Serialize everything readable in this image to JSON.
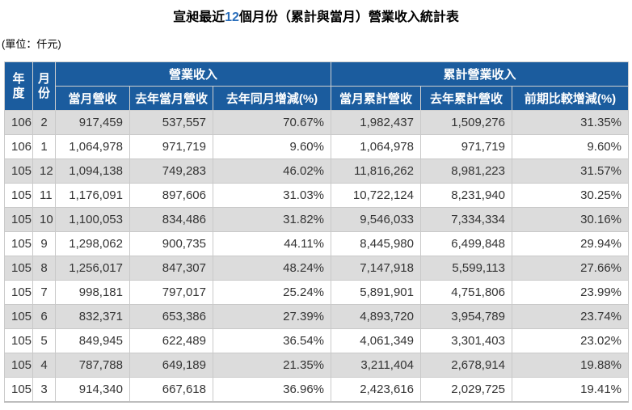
{
  "title": {
    "prefix": "宣昶最近",
    "number": "12",
    "suffix": "個月份（累計與當月）營業收入統計表"
  },
  "unit_label": "(單位：仟元)",
  "colors": {
    "header_bg": "#1b5c9e",
    "header_text": "#ffffff",
    "row_alt_bg": "#dcdcdc",
    "row_bg": "#ffffff",
    "border": "#c9c9c9",
    "text": "#333333",
    "title_color": "#000000",
    "title_number_color": "#2a6ebb"
  },
  "table": {
    "header": {
      "year": "年\n度",
      "month": "月\n份",
      "rev_group": "營業收入",
      "cum_group": "累計營業收入",
      "sub": [
        "當月營收",
        "去年當月營收",
        "去年同月增減(%)",
        "當月累計營收",
        "去年累計營收",
        "前期比較增減(%)"
      ]
    },
    "rows": [
      [
        "106",
        "2",
        "917,459",
        "537,557",
        "70.67%",
        "1,982,437",
        "1,509,276",
        "31.35%"
      ],
      [
        "106",
        "1",
        "1,064,978",
        "971,719",
        "9.60%",
        "1,064,978",
        "971,719",
        "9.60%"
      ],
      [
        "105",
        "12",
        "1,094,138",
        "749,283",
        "46.02%",
        "11,816,262",
        "8,981,223",
        "31.57%"
      ],
      [
        "105",
        "11",
        "1,176,091",
        "897,606",
        "31.03%",
        "10,722,124",
        "8,231,940",
        "30.25%"
      ],
      [
        "105",
        "10",
        "1,100,053",
        "834,486",
        "31.82%",
        "9,546,033",
        "7,334,334",
        "30.16%"
      ],
      [
        "105",
        "9",
        "1,298,062",
        "900,735",
        "44.11%",
        "8,445,980",
        "6,499,848",
        "29.94%"
      ],
      [
        "105",
        "8",
        "1,256,017",
        "847,307",
        "48.24%",
        "7,147,918",
        "5,599,113",
        "27.66%"
      ],
      [
        "105",
        "7",
        "998,181",
        "797,017",
        "25.24%",
        "5,891,901",
        "4,751,806",
        "23.99%"
      ],
      [
        "105",
        "6",
        "832,371",
        "653,386",
        "27.39%",
        "4,893,720",
        "3,954,789",
        "23.74%"
      ],
      [
        "105",
        "5",
        "849,945",
        "622,489",
        "36.54%",
        "4,061,349",
        "3,301,403",
        "23.02%"
      ],
      [
        "105",
        "4",
        "787,788",
        "649,189",
        "21.35%",
        "3,211,404",
        "2,678,914",
        "19.88%"
      ],
      [
        "105",
        "3",
        "914,340",
        "667,618",
        "36.96%",
        "2,423,616",
        "2,029,725",
        "19.41%"
      ]
    ]
  },
  "chart_data": {
    "type": "table",
    "title": "宣昶最近12個月份（累計與當月）營業收入統計表",
    "unit": "仟元",
    "columns": [
      "年度",
      "月份",
      "當月營收",
      "去年當月營收",
      "去年同月增減(%)",
      "當月累計營收",
      "去年累計營收",
      "前期比較增減(%)"
    ],
    "rows": [
      [
        106,
        2,
        917459,
        537557,
        70.67,
        1982437,
        1509276,
        31.35
      ],
      [
        106,
        1,
        1064978,
        971719,
        9.6,
        1064978,
        971719,
        9.6
      ],
      [
        105,
        12,
        1094138,
        749283,
        46.02,
        11816262,
        8981223,
        31.57
      ],
      [
        105,
        11,
        1176091,
        897606,
        31.03,
        10722124,
        8231940,
        30.25
      ],
      [
        105,
        10,
        1100053,
        834486,
        31.82,
        9546033,
        7334334,
        30.16
      ],
      [
        105,
        9,
        1298062,
        900735,
        44.11,
        8445980,
        6499848,
        29.94
      ],
      [
        105,
        8,
        1256017,
        847307,
        48.24,
        7147918,
        5599113,
        27.66
      ],
      [
        105,
        7,
        998181,
        797017,
        25.24,
        5891901,
        4751806,
        23.99
      ],
      [
        105,
        6,
        832371,
        653386,
        27.39,
        4893720,
        3954789,
        23.74
      ],
      [
        105,
        5,
        849945,
        622489,
        36.54,
        4061349,
        3301403,
        23.02
      ],
      [
        105,
        4,
        787788,
        649189,
        21.35,
        3211404,
        2678914,
        19.88
      ],
      [
        105,
        3,
        914340,
        667618,
        36.96,
        2423616,
        2029725,
        19.41
      ]
    ]
  }
}
